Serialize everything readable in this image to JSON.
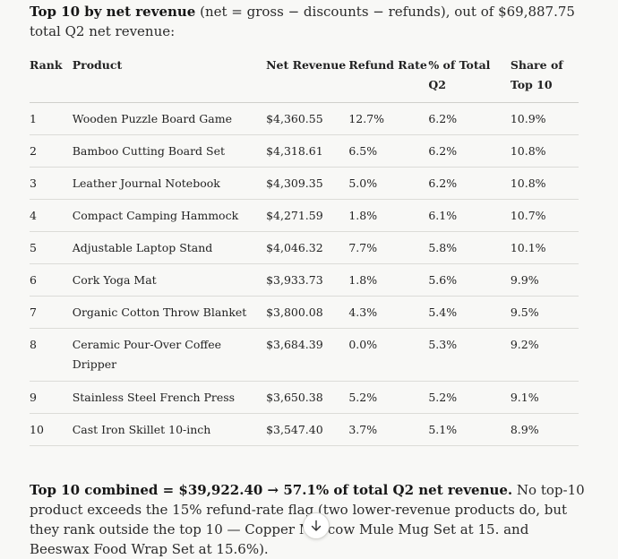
{
  "intro": {
    "bold": "Top 10 by net revenue",
    "rest": " (net = gross − discounts − refunds), out of $69,887.75 total Q2 net revenue:"
  },
  "table": {
    "headers": {
      "rank": "Rank",
      "product": "Product",
      "net_revenue": "Net Revenue",
      "refund_rate": "Refund Rate",
      "pct_total": "% of Total Q2",
      "share_top10": "Share of Top 10"
    },
    "rows": [
      {
        "rank": "1",
        "product": "Wooden Puzzle Board Game",
        "net": "$4,360.55",
        "refund": "12.7%",
        "pct": "6.2%",
        "share": "10.9%"
      },
      {
        "rank": "2",
        "product": "Bamboo Cutting Board Set",
        "net": "$4,318.61",
        "refund": "6.5%",
        "pct": "6.2%",
        "share": "10.8%"
      },
      {
        "rank": "3",
        "product": "Leather Journal Notebook",
        "net": "$4,309.35",
        "refund": "5.0%",
        "pct": "6.2%",
        "share": "10.8%"
      },
      {
        "rank": "4",
        "product": "Compact Camping Hammock",
        "net": "$4,271.59",
        "refund": "1.8%",
        "pct": "6.1%",
        "share": "10.7%"
      },
      {
        "rank": "5",
        "product": "Adjustable Laptop Stand",
        "net": "$4,046.32",
        "refund": "7.7%",
        "pct": "5.8%",
        "share": "10.1%"
      },
      {
        "rank": "6",
        "product": "Cork Yoga Mat",
        "net": "$3,933.73",
        "refund": "1.8%",
        "pct": "5.6%",
        "share": "9.9%"
      },
      {
        "rank": "7",
        "product": "Organic Cotton Throw Blanket",
        "net": "$3,800.08",
        "refund": "4.3%",
        "pct": "5.4%",
        "share": "9.5%"
      },
      {
        "rank": "8",
        "product": "Ceramic Pour-Over Coffee Dripper",
        "net": "$3,684.39",
        "refund": "0.0%",
        "pct": "5.3%",
        "share": "9.2%"
      },
      {
        "rank": "9",
        "product": "Stainless Steel French Press",
        "net": "$3,650.38",
        "refund": "5.2%",
        "pct": "5.2%",
        "share": "9.1%"
      },
      {
        "rank": "10",
        "product": "Cast Iron Skillet 10-inch",
        "net": "$3,547.40",
        "refund": "3.7%",
        "pct": "5.1%",
        "share": "8.9%"
      }
    ]
  },
  "summary": {
    "bold": "Top 10 combined = $39,922.40 → 57.1% of total Q2 net revenue.",
    "rest": " No top-10 product exceeds the 15% refund-rate flag (two lower-revenue products do, but they rank outside the top 10 — Copper Moscow Mule Mug Set at 15.",
    "tail": " and Beeswax Food Wrap Set at 15.6%)."
  },
  "scroll_button": {
    "icon": "arrow-down-icon"
  }
}
